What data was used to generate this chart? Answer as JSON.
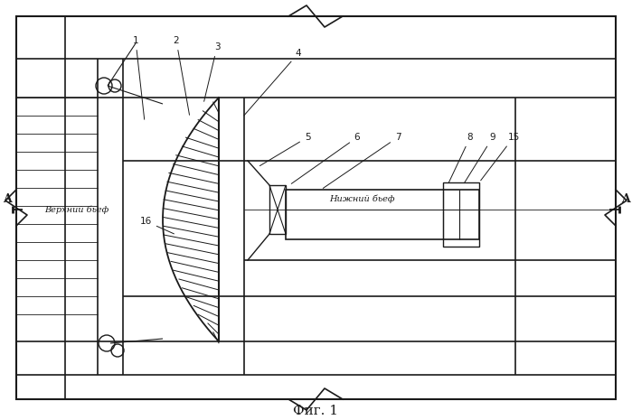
{
  "bg_color": "#ffffff",
  "line_color": "#1a1a1a",
  "fig_label": "Фиг. 1",
  "upper_bef_label": "Верхний бьеф",
  "lower_bef_label": "Нижний бьеф"
}
